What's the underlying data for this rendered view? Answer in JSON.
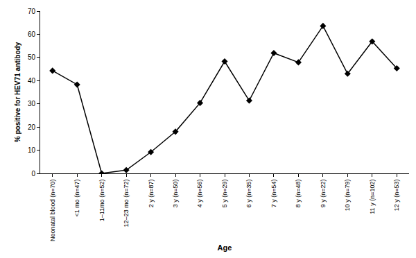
{
  "chart_data": {
    "type": "line",
    "x_label": "Age",
    "y_label": "% positive for HEV71 antibody",
    "categories": [
      "Neonatal blood (n=70)",
      "<1 mo (n=47)",
      "1–11mo (n=52)",
      "12–23 mo (n=72)",
      "2 y (n=87)",
      "3 y (n=50)",
      "4 y (n=56)",
      "5 y (n=29)",
      "6 y (n=35)",
      "7 y (n=54)",
      "8 y (n=48)",
      "9 y (n=22)",
      "10 y (n=79)",
      "11 y (n=102)",
      "12 y (n=53)"
    ],
    "values": [
      44.3,
      38.3,
      0,
      1.4,
      9.2,
      18,
      30.4,
      48.3,
      31.4,
      51.9,
      47.9,
      63.6,
      43,
      56.9,
      45.3
    ],
    "color": "#000000",
    "marker": "diamond",
    "line_style": "solid",
    "ylim": [
      0,
      70
    ],
    "yticks": [
      0,
      10,
      20,
      30,
      40,
      50,
      60,
      70
    ],
    "grid": false
  }
}
